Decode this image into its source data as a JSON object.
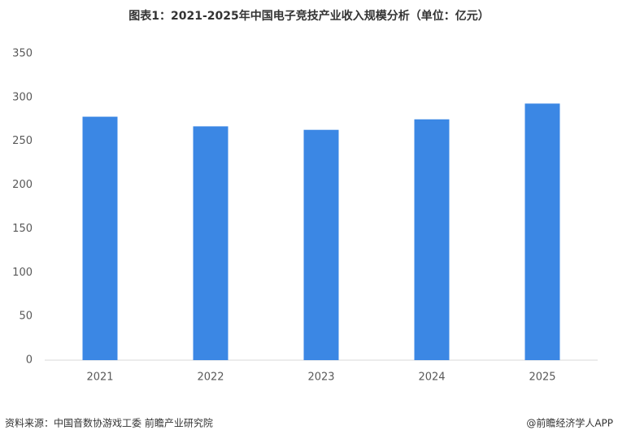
{
  "chart_data": {
    "type": "bar",
    "title": "图表1：2021-2025年中国电子竞技产业收入规模分析（单位：亿元）",
    "categories": [
      "2021",
      "2022",
      "2023",
      "2024",
      "2025"
    ],
    "values": [
      278,
      267,
      263,
      275,
      293
    ],
    "color": "#3b87e4",
    "ylim": [
      0,
      350
    ],
    "yticks": [
      0,
      50,
      100,
      150,
      200,
      250,
      300,
      350
    ],
    "grid": false,
    "source": "资料来源：中国音数协游戏工委 前瞻产业研究院",
    "credit": "@前瞻经济学人APP"
  }
}
